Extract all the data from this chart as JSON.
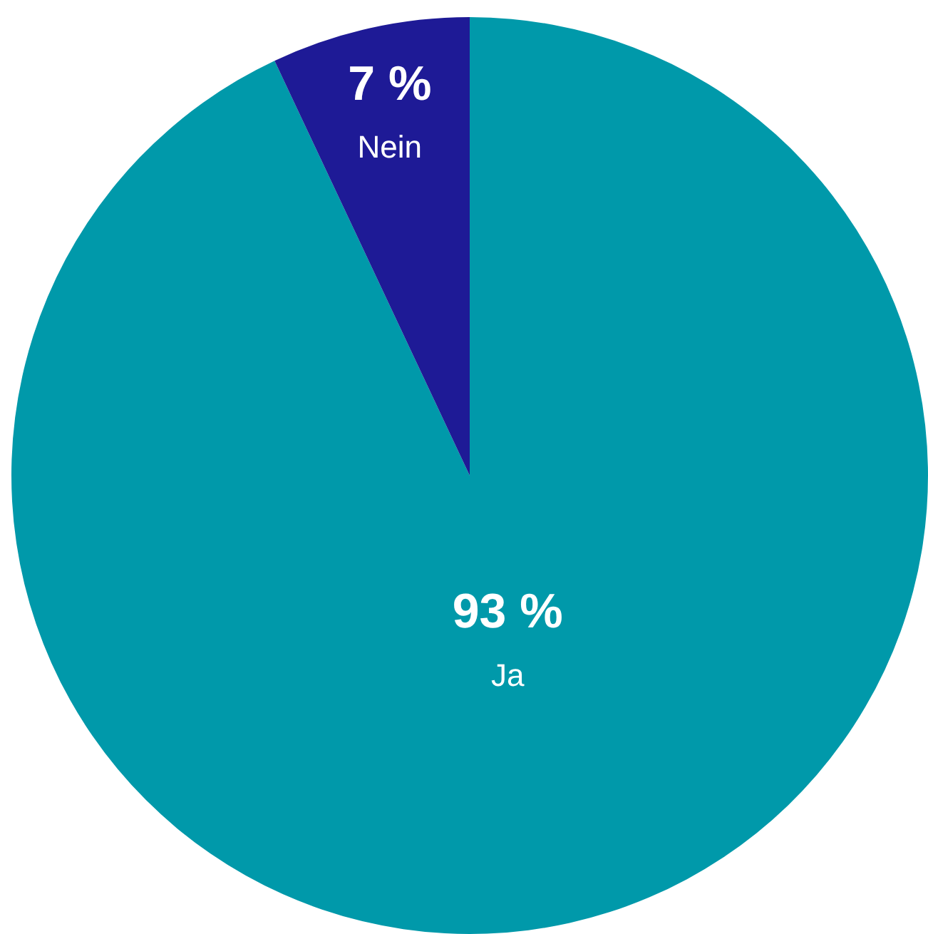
{
  "chart_data": {
    "type": "pie",
    "categories": [
      "Ja",
      "Nein"
    ],
    "values": [
      93,
      7
    ],
    "colors": [
      "#0099aa",
      "#1e1a96"
    ],
    "value_labels": [
      "93 %",
      "7 %"
    ],
    "legend": false
  }
}
